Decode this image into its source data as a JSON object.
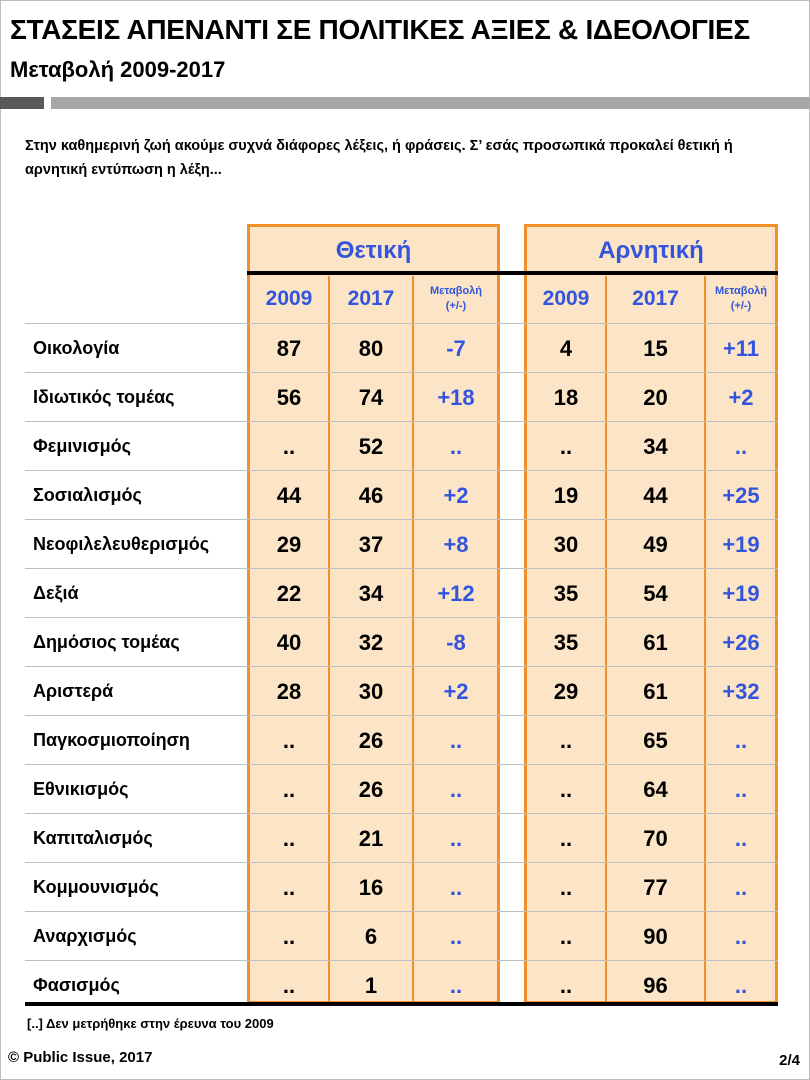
{
  "header": {
    "title": "ΣΤΑΣΕΙΣ ΑΠΕΝΑΝΤΙ ΣΕ ΠΟΛΙΤΙΚΕΣ ΑΞΙΕΣ & ΙΔΕΟΛΟΓΙΕΣ",
    "subtitle": "Μεταβολή 2009-2017"
  },
  "intro": "Στην καθημερινή ζωή ακούμε συχνά διάφορες λέξεις, ή φράσεις. Σ’ εσάς προσωπικά προκαλεί θετική ή αρνητική εντύπωση η λέξη...",
  "table": {
    "positive_header": "Θετική",
    "negative_header": "Αρνητική",
    "col_2009": "2009",
    "col_2017": "2017",
    "col_change_1": "Μεταβολή",
    "col_change_2": "(+/-)",
    "rows": [
      {
        "label": "Οικολογία",
        "p09": "87",
        "p17": "80",
        "pch": "-7",
        "n09": "4",
        "n17": "15",
        "nch": "+11"
      },
      {
        "label": "Ιδιωτικός τομέας",
        "p09": "56",
        "p17": "74",
        "pch": "+18",
        "n09": "18",
        "n17": "20",
        "nch": "+2"
      },
      {
        "label": "Φεμινισμός",
        "p09": "..",
        "p17": "52",
        "pch": "..",
        "n09": "..",
        "n17": "34",
        "nch": ".."
      },
      {
        "label": "Σοσιαλισμός",
        "p09": "44",
        "p17": "46",
        "pch": "+2",
        "n09": "19",
        "n17": "44",
        "nch": "+25"
      },
      {
        "label": "Νεοφιλελευθερισμός",
        "p09": "29",
        "p17": "37",
        "pch": "+8",
        "n09": "30",
        "n17": "49",
        "nch": "+19"
      },
      {
        "label": "Δεξιά",
        "p09": "22",
        "p17": "34",
        "pch": "+12",
        "n09": "35",
        "n17": "54",
        "nch": "+19"
      },
      {
        "label": "Δημόσιος τομέας",
        "p09": "40",
        "p17": "32",
        "pch": "-8",
        "n09": "35",
        "n17": "61",
        "nch": "+26"
      },
      {
        "label": "Αριστερά",
        "p09": "28",
        "p17": "30",
        "pch": "+2",
        "n09": "29",
        "n17": "61",
        "nch": "+32"
      },
      {
        "label": "Παγκοσμιοποίηση",
        "p09": "..",
        "p17": "26",
        "pch": "..",
        "n09": "..",
        "n17": "65",
        "nch": ".."
      },
      {
        "label": "Εθνικισμός",
        "p09": "..",
        "p17": "26",
        "pch": "..",
        "n09": "..",
        "n17": "64",
        "nch": ".."
      },
      {
        "label": "Καπιταλισμός",
        "p09": "..",
        "p17": "21",
        "pch": "..",
        "n09": "..",
        "n17": "70",
        "nch": ".."
      },
      {
        "label": "Κομμουνισμός",
        "p09": "..",
        "p17": "16",
        "pch": "..",
        "n09": "..",
        "n17": "77",
        "nch": ".."
      },
      {
        "label": "Αναρχισμός",
        "p09": "..",
        "p17": "6",
        "pch": "..",
        "n09": "..",
        "n17": "90",
        "nch": ".."
      },
      {
        "label": "Φασισμός",
        "p09": "..",
        "p17": "1",
        "pch": "..",
        "n09": "..",
        "n17": "96",
        "nch": ".."
      }
    ]
  },
  "footnote": "[..] Δεν μετρήθηκε στην έρευνα του 2009",
  "footer": {
    "copyright": "© Public Issue, 2017",
    "page": "2/4"
  },
  "colors": {
    "accent_blue": "#3355dd",
    "panel_fill": "#fbe5c6",
    "panel_border": "#f0902a"
  }
}
